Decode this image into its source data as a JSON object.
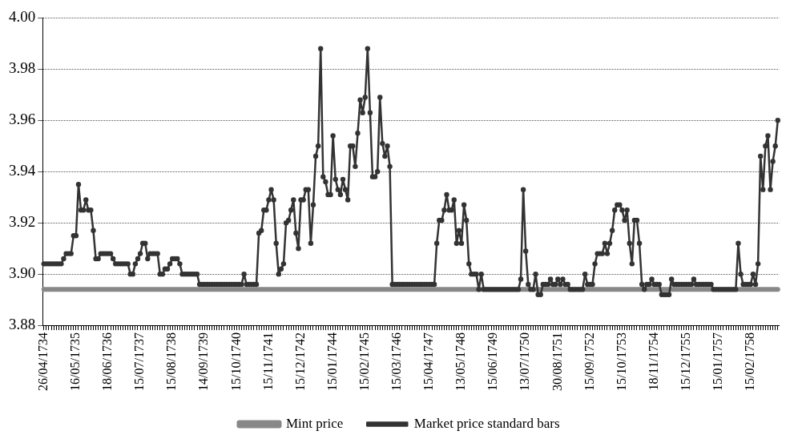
{
  "chart_data": {
    "type": "line",
    "categories": [
      "26/04/1734",
      null,
      null,
      null,
      null,
      null,
      null,
      null,
      null,
      null,
      null,
      null,
      null,
      "16/05/1735",
      null,
      null,
      null,
      null,
      null,
      null,
      null,
      null,
      null,
      null,
      null,
      null,
      "18/06/1736",
      null,
      null,
      null,
      null,
      null,
      null,
      null,
      null,
      null,
      null,
      null,
      null,
      "15/07/1737",
      null,
      null,
      null,
      null,
      null,
      null,
      null,
      null,
      null,
      null,
      null,
      null,
      "15/08/1738",
      null,
      null,
      null,
      null,
      null,
      null,
      null,
      null,
      null,
      null,
      null,
      null,
      "14/09/1739",
      null,
      null,
      null,
      null,
      null,
      null,
      null,
      null,
      null,
      null,
      null,
      null,
      "15/10/1740",
      null,
      null,
      null,
      null,
      null,
      null,
      null,
      null,
      null,
      null,
      null,
      null,
      "15/11/1741",
      null,
      null,
      null,
      null,
      null,
      null,
      null,
      null,
      null,
      null,
      null,
      null,
      "15/12/1742",
      null,
      null,
      null,
      null,
      null,
      null,
      null,
      null,
      null,
      null,
      null,
      null,
      "15/01/1744",
      null,
      null,
      null,
      null,
      null,
      null,
      null,
      null,
      null,
      null,
      null,
      null,
      "15/02/1745",
      null,
      null,
      null,
      null,
      null,
      null,
      null,
      null,
      null,
      null,
      null,
      null,
      "15/03/1746",
      null,
      null,
      null,
      null,
      null,
      null,
      null,
      null,
      null,
      null,
      null,
      null,
      "15/04/1747",
      null,
      null,
      null,
      null,
      null,
      null,
      null,
      null,
      null,
      null,
      null,
      null,
      "13/05/1748",
      null,
      null,
      null,
      null,
      null,
      null,
      null,
      null,
      null,
      null,
      null,
      null,
      "15/06/1749",
      null,
      null,
      null,
      null,
      null,
      null,
      null,
      null,
      null,
      null,
      null,
      null,
      "13/07/1750",
      null,
      null,
      null,
      null,
      null,
      null,
      null,
      null,
      null,
      null,
      null,
      null,
      "30/08/1751",
      null,
      null,
      null,
      null,
      null,
      null,
      null,
      null,
      null,
      null,
      null,
      null,
      "15/09/1752",
      null,
      null,
      null,
      null,
      null,
      null,
      null,
      null,
      null,
      null,
      null,
      null,
      "15/10/1753",
      null,
      null,
      null,
      null,
      null,
      null,
      null,
      null,
      null,
      null,
      null,
      null,
      "18/11/1754",
      null,
      null,
      null,
      null,
      null,
      null,
      null,
      null,
      null,
      null,
      null,
      null,
      "15/12/1755",
      null,
      null,
      null,
      null,
      null,
      null,
      null,
      null,
      null,
      null,
      null,
      null,
      "15/01/1757",
      null,
      null,
      null,
      null,
      null,
      null,
      null,
      null,
      null,
      null,
      null,
      null,
      "15/02/1758",
      null,
      null,
      null,
      null,
      null,
      null,
      null,
      null,
      null,
      null,
      null
    ],
    "series": [
      {
        "name": "Mint price",
        "color": "#888888",
        "marker": "none",
        "values": [
          3.894,
          3.894,
          3.894,
          3.894,
          3.894,
          3.894,
          3.894,
          3.894,
          3.894,
          3.894,
          3.894,
          3.894,
          3.894,
          3.894,
          3.894,
          3.894,
          3.894,
          3.894,
          3.894,
          3.894,
          3.894,
          3.894,
          3.894,
          3.894,
          3.894,
          3.894,
          3.894,
          3.894,
          3.894,
          3.894,
          3.894,
          3.894,
          3.894,
          3.894,
          3.894,
          3.894,
          3.894,
          3.894,
          3.894,
          3.894,
          3.894,
          3.894,
          3.894,
          3.894,
          3.894,
          3.894,
          3.894,
          3.894,
          3.894,
          3.894,
          3.894,
          3.894,
          3.894,
          3.894,
          3.894,
          3.894,
          3.894,
          3.894,
          3.894,
          3.894,
          3.894,
          3.894,
          3.894,
          3.894,
          3.894,
          3.894,
          3.894,
          3.894,
          3.894,
          3.894,
          3.894,
          3.894,
          3.894,
          3.894,
          3.894,
          3.894,
          3.894,
          3.894,
          3.894,
          3.894,
          3.894,
          3.894,
          3.894,
          3.894,
          3.894,
          3.894,
          3.894,
          3.894,
          3.894,
          3.894,
          3.894,
          3.894,
          3.894,
          3.894,
          3.894,
          3.894,
          3.894,
          3.894,
          3.894,
          3.894,
          3.894,
          3.894,
          3.894,
          3.894,
          3.894,
          3.894,
          3.894,
          3.894,
          3.894,
          3.894,
          3.894,
          3.894,
          3.894,
          3.894,
          3.894,
          3.894,
          3.894,
          3.894,
          3.894,
          3.894,
          3.894,
          3.894,
          3.894,
          3.894,
          3.894,
          3.894,
          3.894,
          3.894,
          3.894,
          3.894,
          3.894,
          3.894,
          3.894,
          3.894,
          3.894,
          3.894,
          3.894,
          3.894,
          3.894,
          3.894,
          3.894,
          3.894,
          3.894,
          3.894,
          3.894,
          3.894,
          3.894,
          3.894,
          3.894,
          3.894,
          3.894,
          3.894,
          3.894,
          3.894,
          3.894,
          3.894,
          3.894,
          3.894,
          3.894,
          3.894,
          3.894,
          3.894,
          3.894,
          3.894,
          3.894,
          3.894,
          3.894,
          3.894,
          3.894,
          3.894,
          3.894,
          3.894,
          3.894,
          3.894,
          3.894,
          3.894,
          3.894,
          3.894,
          3.894,
          3.894,
          3.894,
          3.894,
          3.894,
          3.894,
          3.894,
          3.894,
          3.894,
          3.894,
          3.894,
          3.894,
          3.894,
          3.894,
          3.894,
          3.894,
          3.894,
          3.894,
          3.894,
          3.894,
          3.894,
          3.894,
          3.894,
          3.894,
          3.894,
          3.894,
          3.894,
          3.894,
          3.894,
          3.894,
          3.894,
          3.894,
          3.894,
          3.894,
          3.894,
          3.894,
          3.894,
          3.894,
          3.894,
          3.894,
          3.894,
          3.894,
          3.894,
          3.894,
          3.894,
          3.894,
          3.894,
          3.894,
          3.894,
          3.894,
          3.894,
          3.894,
          3.894,
          3.894,
          3.894,
          3.894,
          3.894,
          3.894,
          3.894,
          3.894,
          3.894,
          3.894,
          3.894,
          3.894,
          3.894,
          3.894,
          3.894,
          3.894,
          3.894,
          3.894,
          3.894,
          3.894,
          3.894,
          3.894,
          3.894,
          3.894,
          3.894,
          3.894,
          3.894,
          3.894,
          3.894,
          3.894,
          3.894,
          3.894,
          3.894,
          3.894,
          3.894,
          3.894,
          3.894,
          3.894,
          3.894,
          3.894,
          3.894,
          3.894,
          3.894,
          3.894,
          3.894,
          3.894,
          3.894,
          3.894,
          3.894,
          3.894,
          3.894,
          3.894,
          3.894,
          3.894,
          3.894,
          3.894,
          3.894,
          3.894,
          3.894,
          3.894,
          3.894,
          3.894,
          3.894,
          3.894,
          3.894,
          3.894,
          3.894,
          3.894
        ]
      },
      {
        "name": "Market price standard bars",
        "color": "#333333",
        "marker": "circle",
        "values": [
          3.904,
          3.904,
          3.904,
          3.904,
          3.904,
          3.904,
          3.904,
          3.904,
          3.906,
          3.908,
          3.908,
          3.908,
          3.915,
          3.915,
          3.935,
          3.925,
          3.925,
          3.929,
          3.925,
          3.925,
          3.917,
          3.906,
          3.906,
          3.908,
          3.908,
          3.908,
          3.908,
          3.908,
          3.906,
          3.904,
          3.904,
          3.904,
          3.904,
          3.904,
          3.904,
          3.9,
          3.9,
          3.904,
          3.906,
          3.908,
          3.912,
          3.912,
          3.906,
          3.908,
          3.908,
          3.908,
          3.908,
          3.9,
          3.9,
          3.902,
          3.902,
          3.904,
          3.906,
          3.906,
          3.906,
          3.904,
          3.9,
          3.9,
          3.9,
          3.9,
          3.9,
          3.9,
          3.9,
          3.896,
          3.896,
          3.896,
          3.896,
          3.896,
          3.896,
          3.896,
          3.896,
          3.896,
          3.896,
          3.896,
          3.896,
          3.896,
          3.896,
          3.896,
          3.896,
          3.896,
          3.896,
          3.9,
          3.896,
          3.896,
          3.896,
          3.896,
          3.896,
          3.916,
          3.917,
          3.925,
          3.925,
          3.929,
          3.933,
          3.929,
          3.912,
          3.9,
          3.902,
          3.904,
          3.92,
          3.921,
          3.925,
          3.929,
          3.916,
          3.91,
          3.929,
          3.929,
          3.933,
          3.933,
          3.912,
          3.927,
          3.946,
          3.95,
          3.988,
          3.938,
          3.936,
          3.931,
          3.931,
          3.954,
          3.937,
          3.933,
          3.931,
          3.937,
          3.933,
          3.929,
          3.95,
          3.95,
          3.942,
          3.955,
          3.968,
          3.963,
          3.969,
          3.988,
          3.963,
          3.938,
          3.938,
          3.94,
          3.969,
          3.951,
          3.946,
          3.95,
          3.942,
          3.896,
          3.896,
          3.896,
          3.896,
          3.896,
          3.896,
          3.896,
          3.896,
          3.896,
          3.896,
          3.896,
          3.896,
          3.896,
          3.896,
          3.896,
          3.896,
          3.896,
          3.896,
          3.912,
          3.921,
          3.921,
          3.925,
          3.931,
          3.925,
          3.925,
          3.929,
          3.912,
          3.917,
          3.912,
          3.927,
          3.921,
          3.904,
          3.9,
          3.9,
          3.9,
          3.894,
          3.9,
          3.894,
          3.894,
          3.894,
          3.894,
          3.894,
          3.894,
          3.894,
          3.894,
          3.894,
          3.894,
          3.894,
          3.894,
          3.894,
          3.894,
          3.894,
          3.898,
          3.933,
          3.909,
          3.896,
          3.894,
          3.894,
          3.9,
          3.892,
          3.892,
          3.896,
          3.896,
          3.896,
          3.898,
          3.896,
          3.896,
          3.898,
          3.896,
          3.898,
          3.896,
          3.896,
          3.894,
          3.894,
          3.894,
          3.894,
          3.894,
          3.894,
          3.9,
          3.896,
          3.896,
          3.896,
          3.904,
          3.908,
          3.908,
          3.908,
          3.912,
          3.908,
          3.912,
          3.917,
          3.925,
          3.927,
          3.927,
          3.925,
          3.921,
          3.925,
          3.912,
          3.904,
          3.921,
          3.921,
          3.912,
          3.896,
          3.894,
          3.896,
          3.896,
          3.898,
          3.896,
          3.896,
          3.896,
          3.892,
          3.892,
          3.892,
          3.892,
          3.898,
          3.896,
          3.896,
          3.896,
          3.896,
          3.896,
          3.896,
          3.896,
          3.896,
          3.898,
          3.896,
          3.896,
          3.896,
          3.896,
          3.896,
          3.896,
          3.896,
          3.894,
          3.894,
          3.894,
          3.894,
          3.894,
          3.894,
          3.894,
          3.894,
          3.894,
          3.894,
          3.912,
          3.9,
          3.896,
          3.896,
          3.896,
          3.896,
          3.9,
          3.896,
          3.904,
          3.946,
          3.933,
          3.95,
          3.954,
          3.933,
          3.944,
          3.95,
          3.96
        ]
      }
    ],
    "ylim": [
      3.88,
      4.0
    ],
    "yticks": [
      3.88,
      {
        "value": 3.9,
        "label": "3.90"
      },
      3.92,
      3.94,
      3.96,
      3.98,
      {
        "value": 4.0,
        "label": "4.00"
      }
    ],
    "grid": "y",
    "legend": "bottom",
    "line_style": "solid"
  }
}
